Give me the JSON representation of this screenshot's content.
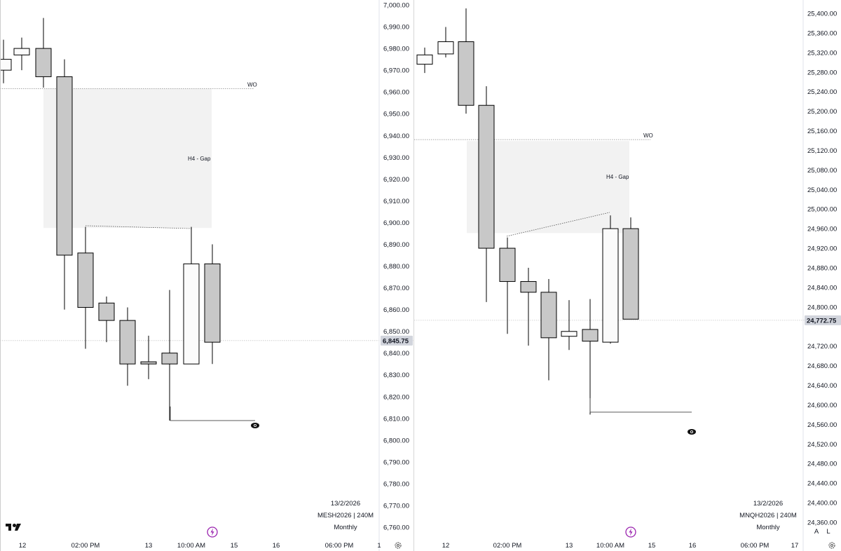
{
  "chart_data": [
    {
      "type": "candlestick",
      "symbol": "MESH2026 | 240M",
      "date": "13/2/2026",
      "period": "Monthly",
      "y_ticks": [
        "7,000.00",
        "6,990.00",
        "6,980.00",
        "6,970.00",
        "6,960.00",
        "6,950.00",
        "6,940.00",
        "6,930.00",
        "6,920.00",
        "6,910.00",
        "6,900.00",
        "6,890.00",
        "6,880.00",
        "6,870.00",
        "6,860.00",
        "6,850.00",
        "6,840.00",
        "6,830.00",
        "6,820.00",
        "6,810.00",
        "6,800.00",
        "6,790.00",
        "6,780.00",
        "6,770.00",
        "6,760.00"
      ],
      "x_ticks": [
        "12",
        "02:00 PM",
        "13",
        "10:00 AM",
        "15",
        "16",
        "06:00 PM",
        "1"
      ],
      "last_price": "6,845.75",
      "wo_level": 6961.5,
      "gap_label": "H4 - Gap",
      "gap_zone": [
        6897.5,
        6961.5
      ],
      "wo_label": "WO",
      "candles": [
        {
          "o": 6970.0,
          "h": 6984.0,
          "l": 6964.0,
          "c": 6975.0
        },
        {
          "o": 6977.0,
          "h": 6985.0,
          "l": 6970.0,
          "c": 6980.0
        },
        {
          "o": 6980.0,
          "h": 6994.0,
          "l": 6962.0,
          "c": 6967.0
        },
        {
          "o": 6967.0,
          "h": 6975.0,
          "l": 6860.0,
          "c": 6885.0
        },
        {
          "o": 6886.0,
          "h": 6898.0,
          "l": 6842.0,
          "c": 6861.0
        },
        {
          "o": 6863.0,
          "h": 6866.0,
          "l": 6845.0,
          "c": 6855.0
        },
        {
          "o": 6855.0,
          "h": 6861.0,
          "l": 6825.0,
          "c": 6835.0
        },
        {
          "o": 6836.0,
          "h": 6848.0,
          "l": 6828.0,
          "c": 6835.0
        },
        {
          "o": 6840.0,
          "h": 6869.0,
          "l": 6809.0,
          "c": 6835.0
        },
        {
          "o": 6835.0,
          "h": 6898.0,
          "l": 6835.0,
          "c": 6881.0
        },
        {
          "o": 6881.0,
          "h": 6890.0,
          "l": 6835.0,
          "c": 6845.0
        }
      ]
    },
    {
      "type": "candlestick",
      "symbol": "MNQH2026 | 240M",
      "date": "13/2/2026",
      "period": "Monthly",
      "y_ticks": [
        "25,400.00",
        "25,360.00",
        "25,320.00",
        "25,280.00",
        "25,240.00",
        "25,200.00",
        "25,160.00",
        "25,120.00",
        "25,080.00",
        "25,040.00",
        "25,000.00",
        "24,960.00",
        "24,920.00",
        "24,880.00",
        "24,840.00",
        "24,800.00",
        "24,720.00",
        "24,680.00",
        "24,640.00",
        "24,600.00",
        "24,560.00",
        "24,520.00",
        "24,480.00",
        "24,440.00",
        "24,400.00",
        "24,360.00"
      ],
      "x_ticks": [
        "12",
        "02:00 PM",
        "13",
        "10:00 AM",
        "15",
        "16",
        "06:00 PM",
        "17"
      ],
      "last_price": "24,772.75",
      "wo_level": 25142,
      "gap_label": "H4 - Gap",
      "gap_zone": [
        24951,
        25139
      ],
      "wo_label": "WO",
      "axis_buttons": [
        "A",
        "L"
      ],
      "candles": [
        {
          "o": 25296,
          "h": 25330,
          "l": 25278,
          "c": 25315
        },
        {
          "o": 25317,
          "h": 25372,
          "l": 25310,
          "c": 25342
        },
        {
          "o": 25342,
          "h": 25410,
          "l": 25195,
          "c": 25212
        },
        {
          "o": 25212,
          "h": 25251,
          "l": 24810,
          "c": 24920
        },
        {
          "o": 24920,
          "h": 24942,
          "l": 24745,
          "c": 24852
        },
        {
          "o": 24852,
          "h": 24880,
          "l": 24721,
          "c": 24830
        },
        {
          "o": 24830,
          "h": 24857,
          "l": 24650,
          "c": 24737
        },
        {
          "o": 24740,
          "h": 24814,
          "l": 24712,
          "c": 24750
        },
        {
          "o": 24754,
          "h": 24816,
          "l": 24580,
          "c": 24730
        },
        {
          "o": 24728,
          "h": 24987,
          "l": 24725,
          "c": 24960
        },
        {
          "o": 24960,
          "h": 24983,
          "l": 24775,
          "c": 24775
        }
      ]
    }
  ]
}
